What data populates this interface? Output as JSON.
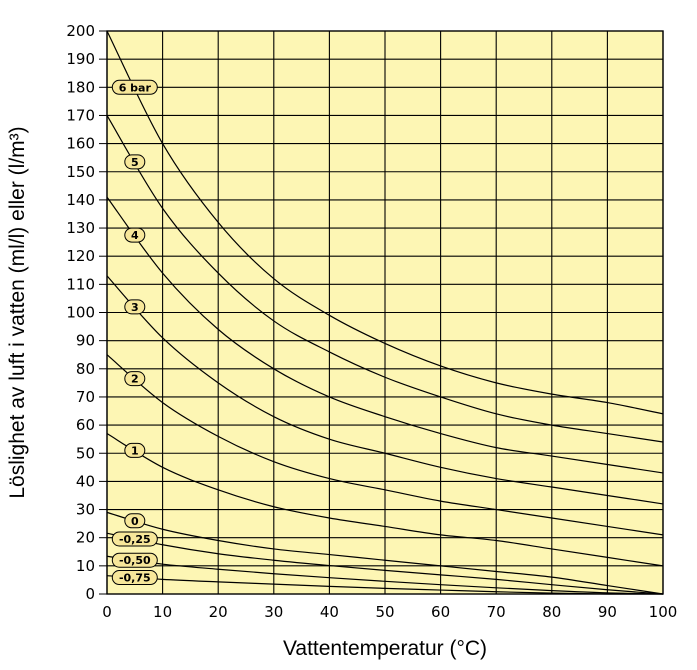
{
  "chart_data": {
    "type": "line",
    "xlabel": "Vattentemperatur (°C)",
    "ylabel": "Löslighet av luft i vatten (ml/l) eller (l/m³)",
    "xlim": [
      0,
      100
    ],
    "ylim": [
      0,
      200
    ],
    "xticks": [
      0,
      10,
      20,
      30,
      40,
      50,
      60,
      70,
      80,
      90,
      100
    ],
    "yticks": [
      0,
      10,
      20,
      30,
      40,
      50,
      60,
      70,
      80,
      90,
      100,
      110,
      120,
      130,
      140,
      150,
      160,
      170,
      180,
      190,
      200
    ],
    "grid": true,
    "x": [
      0,
      10,
      20,
      30,
      40,
      50,
      60,
      70,
      80,
      90,
      100
    ],
    "series": [
      {
        "name": "6 bar",
        "values": [
          200,
          160,
          132,
          112,
          99,
          89,
          81,
          75,
          71,
          68,
          64
        ]
      },
      {
        "name": "5",
        "values": [
          170,
          137,
          114,
          97,
          86,
          77,
          70,
          64,
          60,
          57,
          54
        ]
      },
      {
        "name": "4",
        "values": [
          141,
          114,
          94,
          80,
          70,
          63,
          57,
          52,
          49,
          46,
          43
        ]
      },
      {
        "name": "3",
        "values": [
          113,
          91,
          75,
          63,
          55,
          50,
          45,
          41,
          38,
          35,
          32
        ]
      },
      {
        "name": "2",
        "values": [
          85,
          68,
          56,
          47,
          41,
          37,
          33,
          30,
          27,
          24,
          21
        ]
      },
      {
        "name": "1",
        "values": [
          57,
          45,
          37,
          31,
          27,
          24,
          21,
          19,
          16,
          13,
          10
        ]
      },
      {
        "name": "0",
        "values": [
          29,
          23,
          19,
          16,
          14,
          12,
          10,
          8,
          6,
          3,
          0
        ]
      },
      {
        "name": "-0,25",
        "values": [
          21.6,
          17.5,
          14.3,
          12,
          10.1,
          8.4,
          6.8,
          5.2,
          3.3,
          1.5,
          0
        ]
      },
      {
        "name": "-0,50",
        "values": [
          13.4,
          10.6,
          8.8,
          7.2,
          5.8,
          4.5,
          3.3,
          2.2,
          1.2,
          0.4,
          0
        ]
      },
      {
        "name": "-0,75",
        "values": [
          6.5,
          5.2,
          4.3,
          3.5,
          2.7,
          2,
          1.4,
          0.8,
          0.3,
          0,
          0
        ]
      }
    ],
    "label_x": 5,
    "colors": {
      "plot_bg": "#fdf6b4",
      "grid": "#000000",
      "line": "#000000",
      "badge": "#f7e79a"
    }
  }
}
